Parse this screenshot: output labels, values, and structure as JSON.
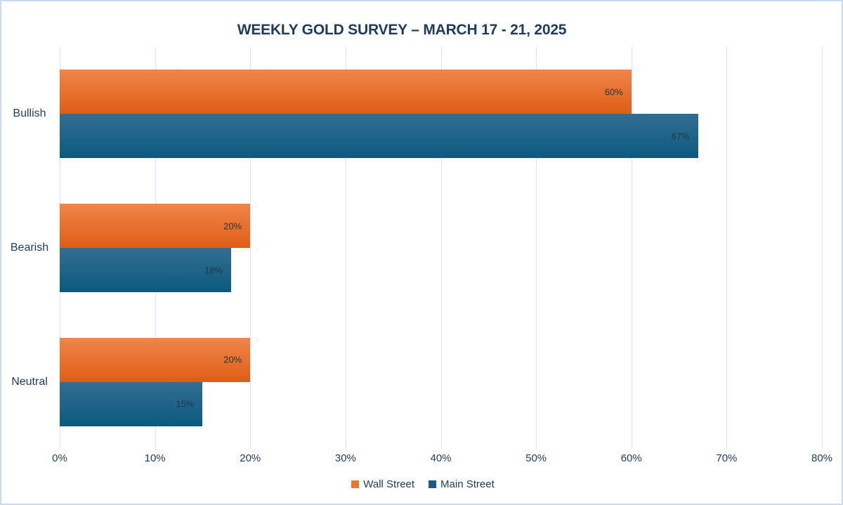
{
  "chart_data": {
    "type": "bar",
    "orientation": "horizontal",
    "title": "WEEKLY GOLD SURVEY – MARCH 17 - 21, 2025",
    "categories": [
      "Bullish",
      "Bearish",
      "Neutral"
    ],
    "series": [
      {
        "name": "Wall Street",
        "values": [
          60,
          20,
          20
        ],
        "value_labels": [
          "60%",
          "20%",
          "20%"
        ],
        "gradient_top": "#F0854B",
        "gradient_bottom": "#DE5E14",
        "legend_color": "#EC7530"
      },
      {
        "name": "Main Street",
        "values": [
          67,
          18,
          15
        ],
        "value_labels": [
          "67%",
          "18%",
          "15%"
        ],
        "gradient_top": "#336D92",
        "gradient_bottom": "#0C5A7F",
        "legend_color": "#1E5B7F"
      }
    ],
    "xlabel": "",
    "ylabel": "",
    "x_axis": {
      "min": 0,
      "max": 80,
      "step": 10,
      "tick_labels": [
        "0%",
        "10%",
        "20%",
        "30%",
        "40%",
        "50%",
        "60%",
        "70%",
        "80%"
      ]
    },
    "grid": true,
    "legend_position": "bottom"
  },
  "colors": {
    "title_text": "#1F3B57",
    "axis_text": "#1F3B57",
    "category_text": "#1F3B57",
    "data_label_text": "#233646",
    "gridline": "#D8E4F1",
    "frame_border": "#C7DCF0",
    "background": "#FFFFFF"
  }
}
